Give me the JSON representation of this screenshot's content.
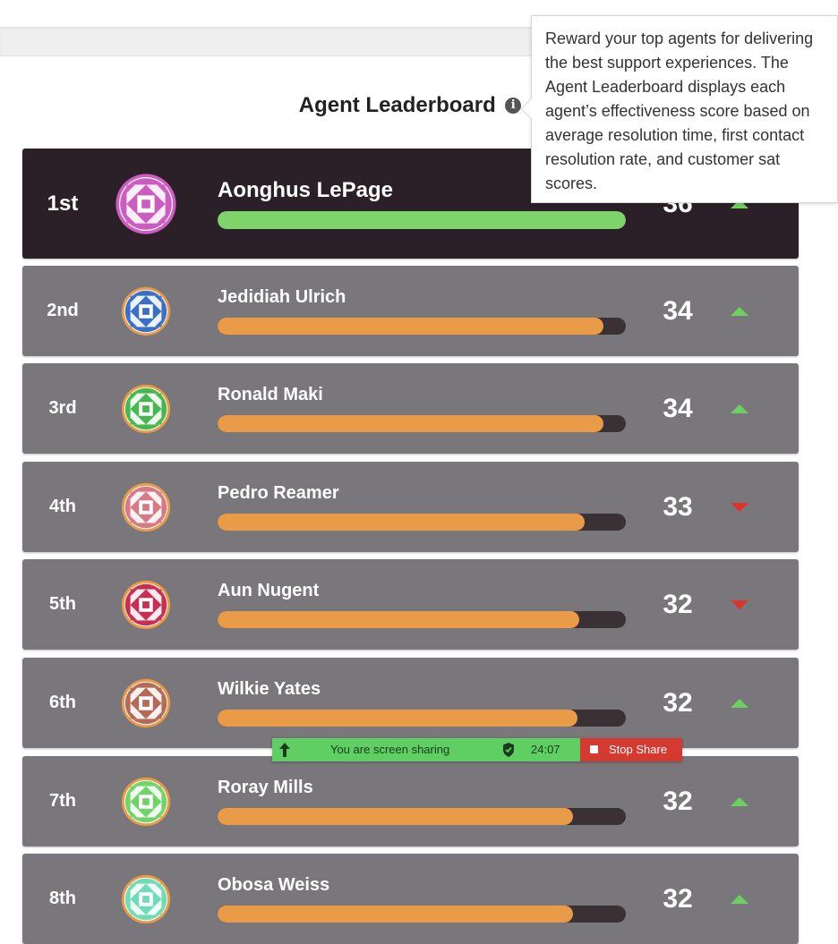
{
  "page": {
    "title": "Agent Leaderboard",
    "tooltip": "Reward your top agents for delivering the best support experiences. The Agent Leaderboard displays each agent’s effectiveness score based on average resolution time, first contact resolution rate, and customer sat scores."
  },
  "agents": [
    {
      "rank": "1st",
      "name": "Aonghus LePage",
      "score": "36",
      "trend": "up",
      "progress": 1.0,
      "avatar_color": "#cc5cc0",
      "avatar_ring": "#cc5cc0",
      "avatar_icon": "quilt-avatar-icon"
    },
    {
      "rank": "2nd",
      "name": "Jedidiah Ulrich",
      "score": "34",
      "trend": "up",
      "progress": 0.945,
      "avatar_color": "#3b6fc6",
      "avatar_ring": "#ea9b47",
      "avatar_icon": "quilt-avatar-icon"
    },
    {
      "rank": "3rd",
      "name": "Ronald Maki",
      "score": "34",
      "trend": "up",
      "progress": 0.945,
      "avatar_color": "#47b84f",
      "avatar_ring": "#ea9b47",
      "avatar_icon": "quilt-avatar-icon"
    },
    {
      "rank": "4th",
      "name": "Pedro Reamer",
      "score": "33",
      "trend": "down",
      "progress": 0.9,
      "avatar_color": "#d77a86",
      "avatar_ring": "#ea9b47",
      "avatar_icon": "quilt-avatar-icon"
    },
    {
      "rank": "5th",
      "name": "Aun Nugent",
      "score": "32",
      "trend": "down",
      "progress": 0.887,
      "avatar_color": "#c92d52",
      "avatar_ring": "#ea9b47",
      "avatar_icon": "quilt-avatar-icon"
    },
    {
      "rank": "6th",
      "name": "Wilkie Yates",
      "score": "32",
      "trend": "up",
      "progress": 0.882,
      "avatar_color": "#b36a56",
      "avatar_ring": "#ea9b47",
      "avatar_icon": "quilt-avatar-icon"
    },
    {
      "rank": "7th",
      "name": "Roray Mills",
      "score": "32",
      "trend": "up",
      "progress": 0.87,
      "avatar_color": "#72d36a",
      "avatar_ring": "#ea9b47",
      "avatar_icon": "quilt-avatar-icon"
    },
    {
      "rank": "8th",
      "name": "Obosa Weiss",
      "score": "32",
      "trend": "up",
      "progress": 0.87,
      "avatar_color": "#6fdbb7",
      "avatar_ring": "#ea9b47",
      "avatar_icon": "quilt-avatar-icon"
    }
  ],
  "share_bar": {
    "text": "You are screen sharing",
    "timer": "24:07",
    "stop_label": "Stop Share"
  },
  "colors": {
    "first_row_bg": "#2b2028",
    "row_bg": "#7a777c",
    "bar_first": "#7ed46b",
    "bar_other": "#ea9b47",
    "trend_up": "#6ccf5e",
    "trend_down": "#d9352b"
  }
}
